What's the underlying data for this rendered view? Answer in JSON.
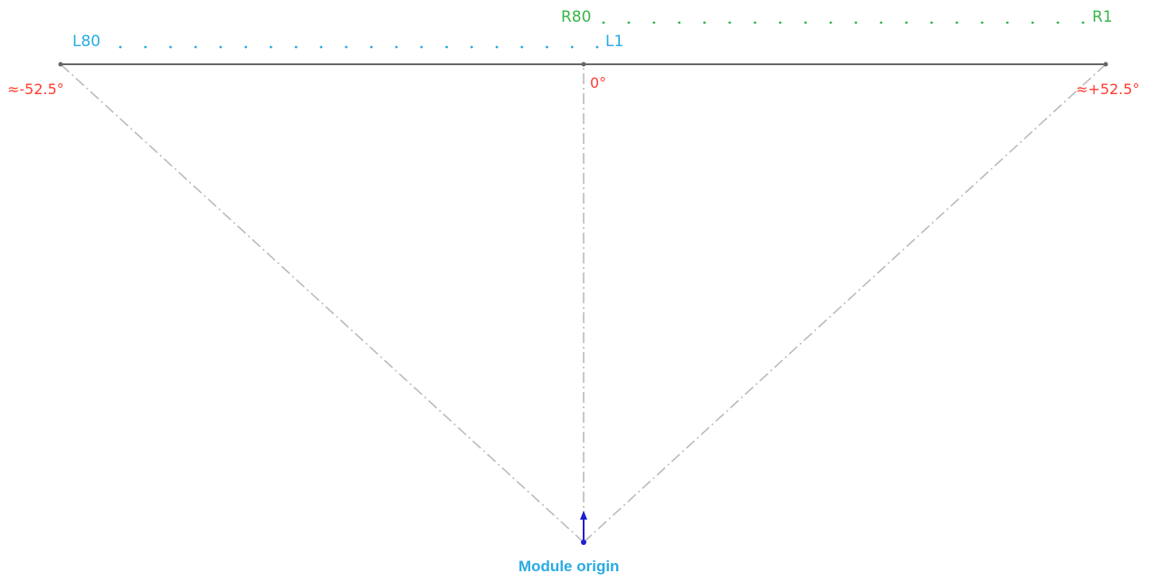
{
  "left_group": {
    "first_label": "L80",
    "last_label": "L1",
    "color": "#29abe2"
  },
  "right_group": {
    "first_label": "R80",
    "last_label": "R1",
    "color": "#39b54a"
  },
  "angles": {
    "left": "≈-52.5°",
    "center": "0°",
    "right": "≈+52.5°",
    "color": "#ff3b30"
  },
  "origin": {
    "label": "Module origin",
    "color": "#29abe2",
    "arrow_color": "#1f1fd0"
  },
  "colors": {
    "baseline": "#666666",
    "ray": "#bbbbbb"
  }
}
